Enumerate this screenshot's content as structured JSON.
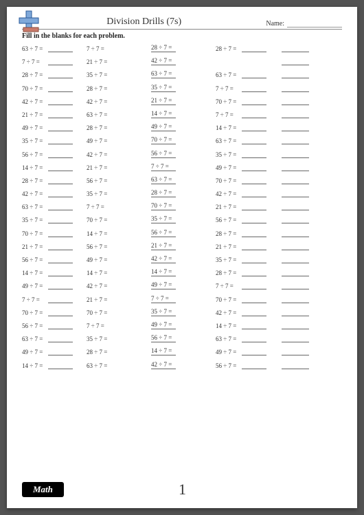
{
  "header": {
    "title": "Division Drills (7s)",
    "name_label": "Name:"
  },
  "instruction": "Fill in the blanks for each problem.",
  "footer": {
    "badge": "Math",
    "page": "1"
  },
  "columns": {
    "c1": [
      "63 ÷ 7 =",
      "7 ÷ 7 =",
      "28 ÷ 7 =",
      "70 ÷ 7 =",
      "42 ÷ 7 =",
      "21 ÷ 7 =",
      "49 ÷ 7 =",
      "35 ÷ 7 =",
      "56 ÷ 7 =",
      "14 ÷ 7 =",
      "28 ÷ 7 =",
      "42 ÷ 7 =",
      "63 ÷ 7 =",
      "35 ÷ 7 =",
      "70 ÷ 7 =",
      "21 ÷ 7 =",
      "56 ÷ 7 =",
      "14 ÷ 7 =",
      "49 ÷ 7 =",
      "7 ÷ 7 =",
      "70 ÷ 7 =",
      "56 ÷ 7 =",
      "63 ÷ 7 =",
      "49 ÷ 7 =",
      "14 ÷ 7 ="
    ],
    "c2": [
      "7 ÷ 7 =",
      "21 ÷ 7 =",
      "35 ÷ 7 =",
      "28 ÷ 7 =",
      "42 ÷ 7 =",
      "63 ÷ 7 =",
      "28 ÷ 7 =",
      "49 ÷ 7 =",
      "42 ÷ 7 =",
      "21 ÷ 7 =",
      "56 ÷ 7 =",
      "35 ÷ 7 =",
      "7 ÷ 7 =",
      "70 ÷ 7 =",
      "14 ÷ 7 =",
      "56 ÷ 7 =",
      "49 ÷ 7 =",
      "14 ÷ 7 =",
      "42 ÷ 7 =",
      "21 ÷ 7 =",
      "70 ÷ 7 =",
      "7 ÷ 7 =",
      "35 ÷ 7 =",
      "28 ÷ 7 =",
      "63 ÷ 7 ="
    ],
    "c3": [
      "28 ÷ 7 =",
      "42 ÷ 7 =",
      "63 ÷ 7 =",
      "35 ÷ 7 =",
      "21 ÷ 7 =",
      "14 ÷ 7 =",
      "49 ÷ 7 =",
      "70 ÷ 7 =",
      "56 ÷ 7 =",
      "7 ÷ 7 =",
      "63 ÷ 7 =",
      "28 ÷ 7 =",
      "70 ÷ 7 =",
      "35 ÷ 7 =",
      "56 ÷ 7 =",
      "21 ÷ 7 =",
      "42 ÷ 7 =",
      "14 ÷ 7 =",
      "49 ÷ 7 =",
      "7 ÷ 7 =",
      "35 ÷ 7 =",
      "49 ÷ 7 =",
      "56 ÷ 7 =",
      "14 ÷ 7 =",
      "42 ÷ 7 ="
    ],
    "c4": [
      "28 ÷ 7 =",
      "",
      "63 ÷ 7 =",
      "7 ÷ 7 =",
      "70 ÷ 7 =",
      "7 ÷ 7 =",
      "14 ÷ 7 =",
      "63 ÷ 7 =",
      "35 ÷ 7 =",
      "49 ÷ 7 =",
      "70 ÷ 7 =",
      "42 ÷ 7 =",
      "21 ÷ 7 =",
      "56 ÷ 7 =",
      "28 ÷ 7 =",
      "21 ÷ 7 =",
      "35 ÷ 7 =",
      "28 ÷ 7 =",
      "7 ÷ 7 =",
      "70 ÷ 7 =",
      "42 ÷ 7 =",
      "14 ÷ 7 =",
      "63 ÷ 7 =",
      "49 ÷ 7 =",
      "56 ÷ 7 ="
    ]
  }
}
